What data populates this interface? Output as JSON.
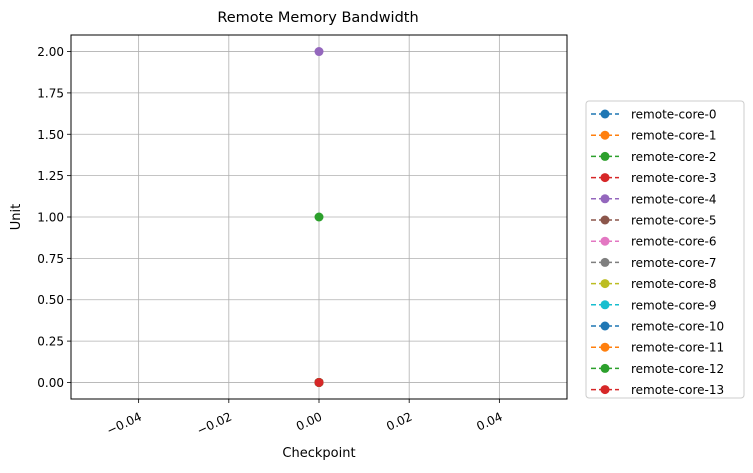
{
  "chart_data": {
    "type": "line",
    "title": "Remote Memory Bandwidth",
    "xlabel": "Checkpoint",
    "ylabel": "Unit",
    "xlim": [
      -0.055,
      0.055
    ],
    "ylim": [
      -0.1,
      2.1
    ],
    "xticks": [
      -0.04,
      -0.02,
      0.0,
      0.02,
      0.04
    ],
    "xtick_labels": [
      "−0.04",
      "−0.02",
      "0.00",
      "0.02",
      "0.04"
    ],
    "yticks": [
      0,
      0.25,
      0.5,
      0.75,
      1.0,
      1.25,
      1.5,
      1.75,
      2.0
    ],
    "ytick_labels": [
      "0.00",
      "0.25",
      "0.50",
      "0.75",
      "1.00",
      "1.25",
      "1.50",
      "1.75",
      "2.00"
    ],
    "grid": true,
    "legend_position": "outside right",
    "line_style": "dashed",
    "marker": "circle",
    "series": [
      {
        "name": "remote-core-0",
        "color": "#1f77b4",
        "x": [
          0
        ],
        "y": [
          0
        ]
      },
      {
        "name": "remote-core-1",
        "color": "#ff7f0e",
        "x": [
          0
        ],
        "y": [
          0
        ]
      },
      {
        "name": "remote-core-2",
        "color": "#2ca02c",
        "x": [
          0
        ],
        "y": [
          1
        ]
      },
      {
        "name": "remote-core-3",
        "color": "#d62728",
        "x": [
          0
        ],
        "y": [
          0
        ]
      },
      {
        "name": "remote-core-4",
        "color": "#9467bd",
        "x": [
          0
        ],
        "y": [
          2
        ]
      },
      {
        "name": "remote-core-5",
        "color": "#8c564b",
        "x": [
          0
        ],
        "y": [
          0
        ]
      },
      {
        "name": "remote-core-6",
        "color": "#e377c2",
        "x": [
          0
        ],
        "y": [
          0
        ]
      },
      {
        "name": "remote-core-7",
        "color": "#7f7f7f",
        "x": [
          0
        ],
        "y": [
          0
        ]
      },
      {
        "name": "remote-core-8",
        "color": "#bcbd22",
        "x": [
          0
        ],
        "y": [
          0
        ]
      },
      {
        "name": "remote-core-9",
        "color": "#17becf",
        "x": [
          0
        ],
        "y": [
          0
        ]
      },
      {
        "name": "remote-core-10",
        "color": "#1f77b4",
        "x": [
          0
        ],
        "y": [
          0
        ]
      },
      {
        "name": "remote-core-11",
        "color": "#ff7f0e",
        "x": [
          0
        ],
        "y": [
          0
        ]
      },
      {
        "name": "remote-core-12",
        "color": "#2ca02c",
        "x": [
          0
        ],
        "y": [
          0
        ]
      },
      {
        "name": "remote-core-13",
        "color": "#d62728",
        "x": [
          0
        ],
        "y": [
          0
        ]
      }
    ]
  }
}
